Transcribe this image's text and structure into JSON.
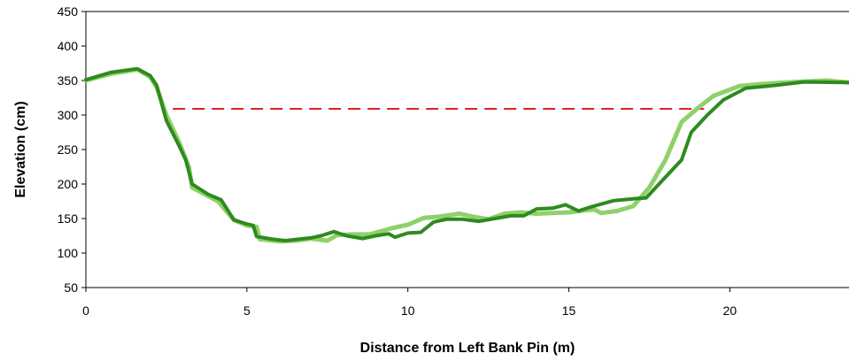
{
  "chart_data": {
    "type": "line",
    "title": "",
    "xlabel": "Distance from Left Bank Pin (m)",
    "ylabel": "Elevation (cm)",
    "xlim": [
      0,
      23.7
    ],
    "ylim": [
      50,
      450
    ],
    "x_ticks": [
      0,
      5,
      10,
      15,
      20
    ],
    "y_ticks": [
      50,
      100,
      150,
      200,
      250,
      300,
      350,
      400,
      450
    ],
    "grid": false,
    "legend": "none",
    "series": [
      {
        "color": "#8fd16a",
        "values": [
          [
            0,
            350
          ],
          [
            0.8,
            360
          ],
          [
            1.6,
            366
          ],
          [
            2.0,
            355
          ],
          [
            2.2,
            340
          ],
          [
            2.5,
            300
          ],
          [
            2.9,
            260
          ],
          [
            3.2,
            225
          ],
          [
            3.3,
            195
          ],
          [
            3.7,
            185
          ],
          [
            4.1,
            175
          ],
          [
            4.6,
            148
          ],
          [
            5.0,
            140
          ],
          [
            5.3,
            138
          ],
          [
            5.4,
            120
          ],
          [
            6.0,
            117
          ],
          [
            6.5,
            118
          ],
          [
            7.0,
            121
          ],
          [
            7.5,
            118
          ],
          [
            7.8,
            126
          ],
          [
            8.3,
            127
          ],
          [
            8.8,
            127
          ],
          [
            9.2,
            132
          ],
          [
            9.5,
            136
          ],
          [
            10.0,
            141
          ],
          [
            10.5,
            151
          ],
          [
            11.0,
            153
          ],
          [
            11.6,
            157
          ],
          [
            12.0,
            153
          ],
          [
            12.5,
            149
          ],
          [
            13.0,
            157
          ],
          [
            13.5,
            159
          ],
          [
            14.0,
            157
          ],
          [
            14.5,
            158
          ],
          [
            15.0,
            159
          ],
          [
            15.5,
            162
          ],
          [
            15.8,
            163
          ],
          [
            16.0,
            158
          ],
          [
            16.5,
            161
          ],
          [
            17.0,
            168
          ],
          [
            17.5,
            195
          ],
          [
            18.0,
            235
          ],
          [
            18.5,
            290
          ],
          [
            19.0,
            310
          ],
          [
            19.5,
            328
          ],
          [
            20.3,
            342
          ],
          [
            21.0,
            345
          ],
          [
            22.0,
            348
          ],
          [
            23.0,
            350
          ],
          [
            23.7,
            347
          ]
        ]
      },
      {
        "color": "#2e8b1f",
        "values": [
          [
            0,
            351
          ],
          [
            0.8,
            362
          ],
          [
            1.6,
            367
          ],
          [
            2.0,
            357
          ],
          [
            2.2,
            343
          ],
          [
            2.5,
            292
          ],
          [
            2.9,
            255
          ],
          [
            3.1,
            235
          ],
          [
            3.3,
            200
          ],
          [
            3.8,
            185
          ],
          [
            4.2,
            177
          ],
          [
            4.6,
            148
          ],
          [
            5.0,
            142
          ],
          [
            5.2,
            140
          ],
          [
            5.3,
            124
          ],
          [
            5.8,
            120
          ],
          [
            6.2,
            118
          ],
          [
            7.0,
            122
          ],
          [
            7.3,
            125
          ],
          [
            7.7,
            131
          ],
          [
            8.1,
            125
          ],
          [
            8.6,
            121
          ],
          [
            9.0,
            125
          ],
          [
            9.4,
            128
          ],
          [
            9.6,
            123
          ],
          [
            10.0,
            129
          ],
          [
            10.4,
            130
          ],
          [
            10.8,
            145
          ],
          [
            11.2,
            149
          ],
          [
            11.7,
            149
          ],
          [
            12.2,
            146
          ],
          [
            12.7,
            150
          ],
          [
            13.2,
            154
          ],
          [
            13.6,
            154
          ],
          [
            14.0,
            164
          ],
          [
            14.5,
            165
          ],
          [
            14.9,
            170
          ],
          [
            15.3,
            161
          ],
          [
            15.7,
            167
          ],
          [
            16.4,
            176
          ],
          [
            17.1,
            179
          ],
          [
            17.4,
            180
          ],
          [
            17.8,
            200
          ],
          [
            18.2,
            220
          ],
          [
            18.5,
            235
          ],
          [
            18.8,
            275
          ],
          [
            19.3,
            300
          ],
          [
            19.8,
            322
          ],
          [
            20.5,
            339
          ],
          [
            21.4,
            343
          ],
          [
            22.3,
            348
          ],
          [
            23.7,
            347
          ]
        ]
      }
    ],
    "reference_line": {
      "y": 309,
      "x_start": 2.7,
      "x_end": 19.2,
      "color": "#e02020",
      "style": "dashed"
    }
  }
}
